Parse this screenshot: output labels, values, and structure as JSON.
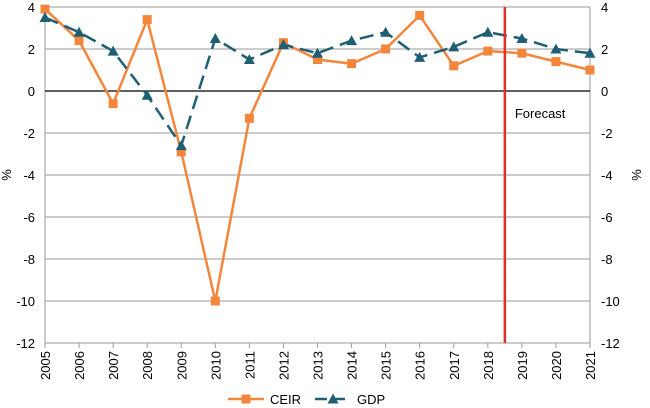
{
  "chart_data": {
    "type": "line",
    "categories": [
      "2005",
      "2006",
      "2007",
      "2008",
      "2009",
      "2010",
      "2011",
      "2012",
      "2013",
      "2014",
      "2015",
      "2016",
      "2017",
      "2018",
      "2019",
      "2020",
      "2021"
    ],
    "series": [
      {
        "name": "CEIR",
        "color": "#f4863b",
        "marker": "square",
        "line_style": "solid",
        "values": [
          3.9,
          2.4,
          -0.6,
          3.4,
          -2.9,
          -10.0,
          -1.3,
          2.3,
          1.5,
          1.3,
          2.0,
          3.6,
          1.2,
          1.9,
          1.8,
          1.4,
          1.0
        ]
      },
      {
        "name": "GDP",
        "color": "#1f5f73",
        "marker": "triangle",
        "line_style": "dashed",
        "values": [
          3.5,
          2.8,
          1.9,
          -0.2,
          -2.6,
          2.5,
          1.5,
          2.2,
          1.8,
          2.4,
          2.8,
          1.6,
          2.1,
          2.8,
          2.5,
          2.0,
          1.8
        ]
      }
    ],
    "ylim": [
      -12,
      4
    ],
    "yticks": [
      -12,
      -10,
      -8,
      -6,
      -4,
      -2,
      0,
      2,
      4
    ],
    "ylabel_left": "%",
    "ylabel_right": "%",
    "grid": true,
    "legend_position": "bottom",
    "forecast_line": {
      "after_category": "2018",
      "label": "Forecast",
      "color": "#e0302a"
    }
  }
}
